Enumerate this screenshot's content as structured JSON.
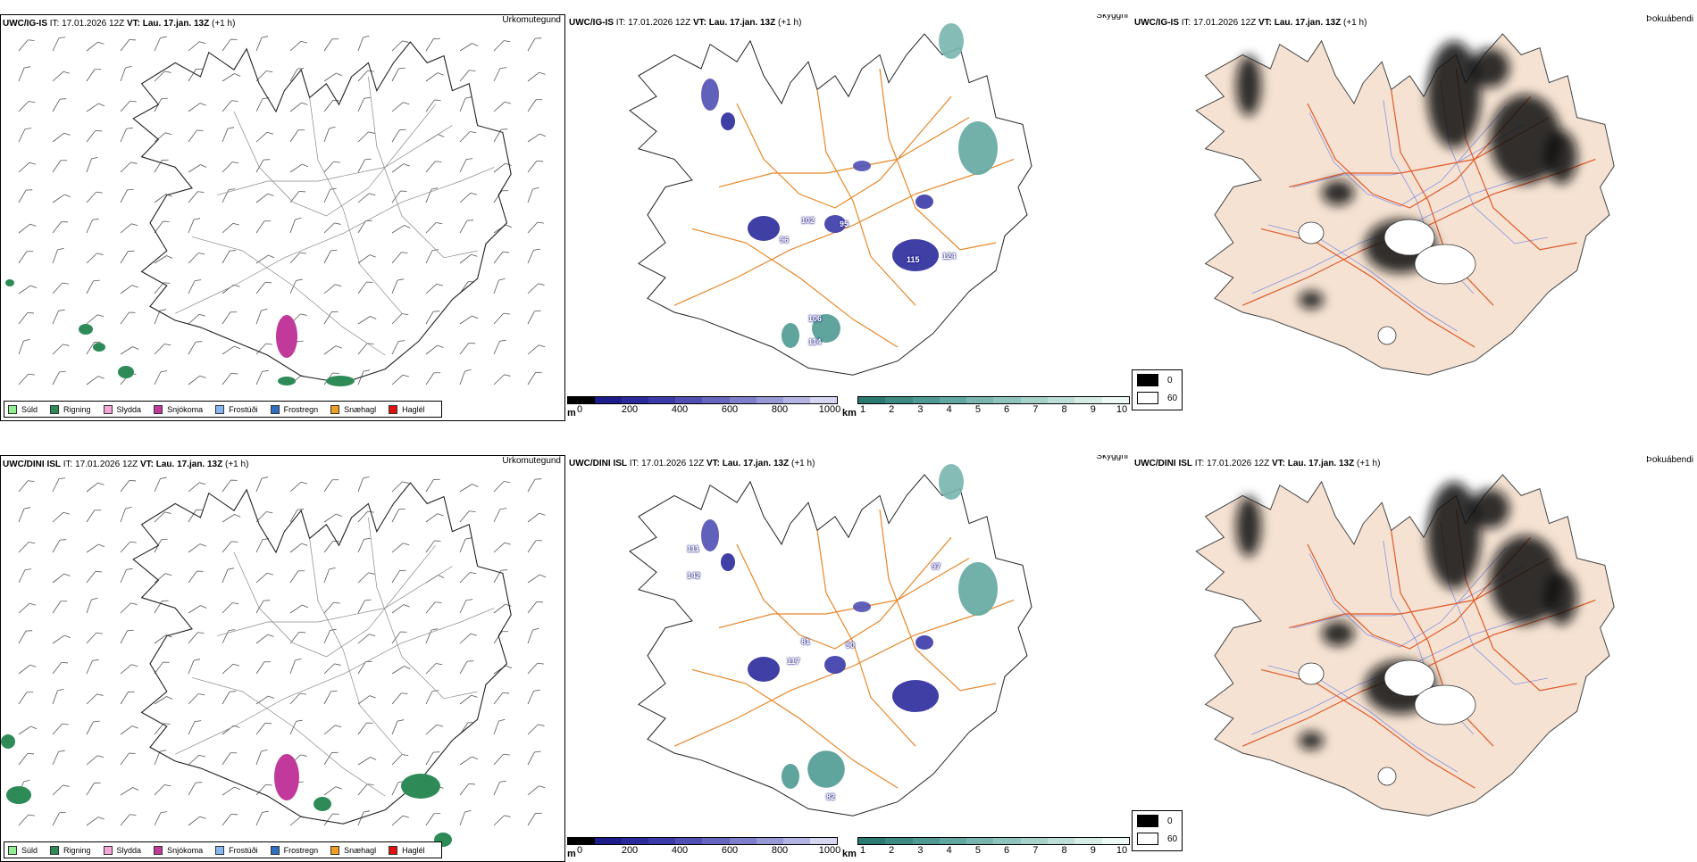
{
  "rows": [
    {
      "model": "UWC/IG-IS",
      "it_label": "IT:",
      "it_value": "17.01.2026 12Z",
      "vt_label": "VT:",
      "vt_value": "Lau. 17.jan. 13Z",
      "offset": "(+1 h)",
      "precip_type_title": "Úrkomutegund",
      "visibility_title": "Skyggni",
      "fog_title": "Þokuábendi",
      "visibility_labels": [
        "96",
        "102",
        "95",
        "115",
        "124",
        "106",
        "114"
      ]
    },
    {
      "model": "UWC/DINI ISL",
      "it_label": "IT:",
      "it_value": "17.01.2026 12Z",
      "vt_label": "VT:",
      "vt_value": "Lau. 17.jan. 13Z",
      "offset": "(+1 h)",
      "precip_type_title": "Úrkomutegund",
      "visibility_title": "Skyggni",
      "fog_title": "Þokuábendi",
      "visibility_labels": [
        "111",
        "142",
        "97",
        "117",
        "81",
        "90",
        "82"
      ]
    }
  ],
  "precip_legend": [
    {
      "label": "Súld",
      "color": "#90ee90"
    },
    {
      "label": "Rigning",
      "color": "#2e8b57"
    },
    {
      "label": "Slydda",
      "color": "#f4a6d7"
    },
    {
      "label": "Snjókoma",
      "color": "#c0399b"
    },
    {
      "label": "Frostúði",
      "color": "#87b7f0"
    },
    {
      "label": "Frostregn",
      "color": "#2f6fc0"
    },
    {
      "label": "Snæhagl",
      "color": "#f0a020"
    },
    {
      "label": "Haglél",
      "color": "#e01010"
    }
  ],
  "elevation_scale": {
    "unit": "m",
    "ticks": [
      "0",
      "200",
      "400",
      "600",
      "800",
      "1000"
    ],
    "colors": [
      "#000000",
      "#1c1c8a",
      "#2a2a9c",
      "#3a3aa8",
      "#5050b4",
      "#6666bf",
      "#7e7eca",
      "#9898d6",
      "#b4b4e2",
      "#d6d6f0"
    ]
  },
  "visibility_scale": {
    "unit": "km",
    "ticks": [
      "1",
      "2",
      "3",
      "4",
      "5",
      "6",
      "7",
      "8",
      "9",
      "10"
    ],
    "colors": [
      "#2a7a72",
      "#3c8a82",
      "#4e9a92",
      "#62a8a0",
      "#78b6ae",
      "#8ec4bc",
      "#a6d2ca",
      "#bedfd8",
      "#d6ece6",
      "#eef8f5"
    ]
  },
  "fog_legend": [
    {
      "label": "0",
      "color": "#000000"
    },
    {
      "label": "60",
      "color": "#ffffff"
    }
  ]
}
